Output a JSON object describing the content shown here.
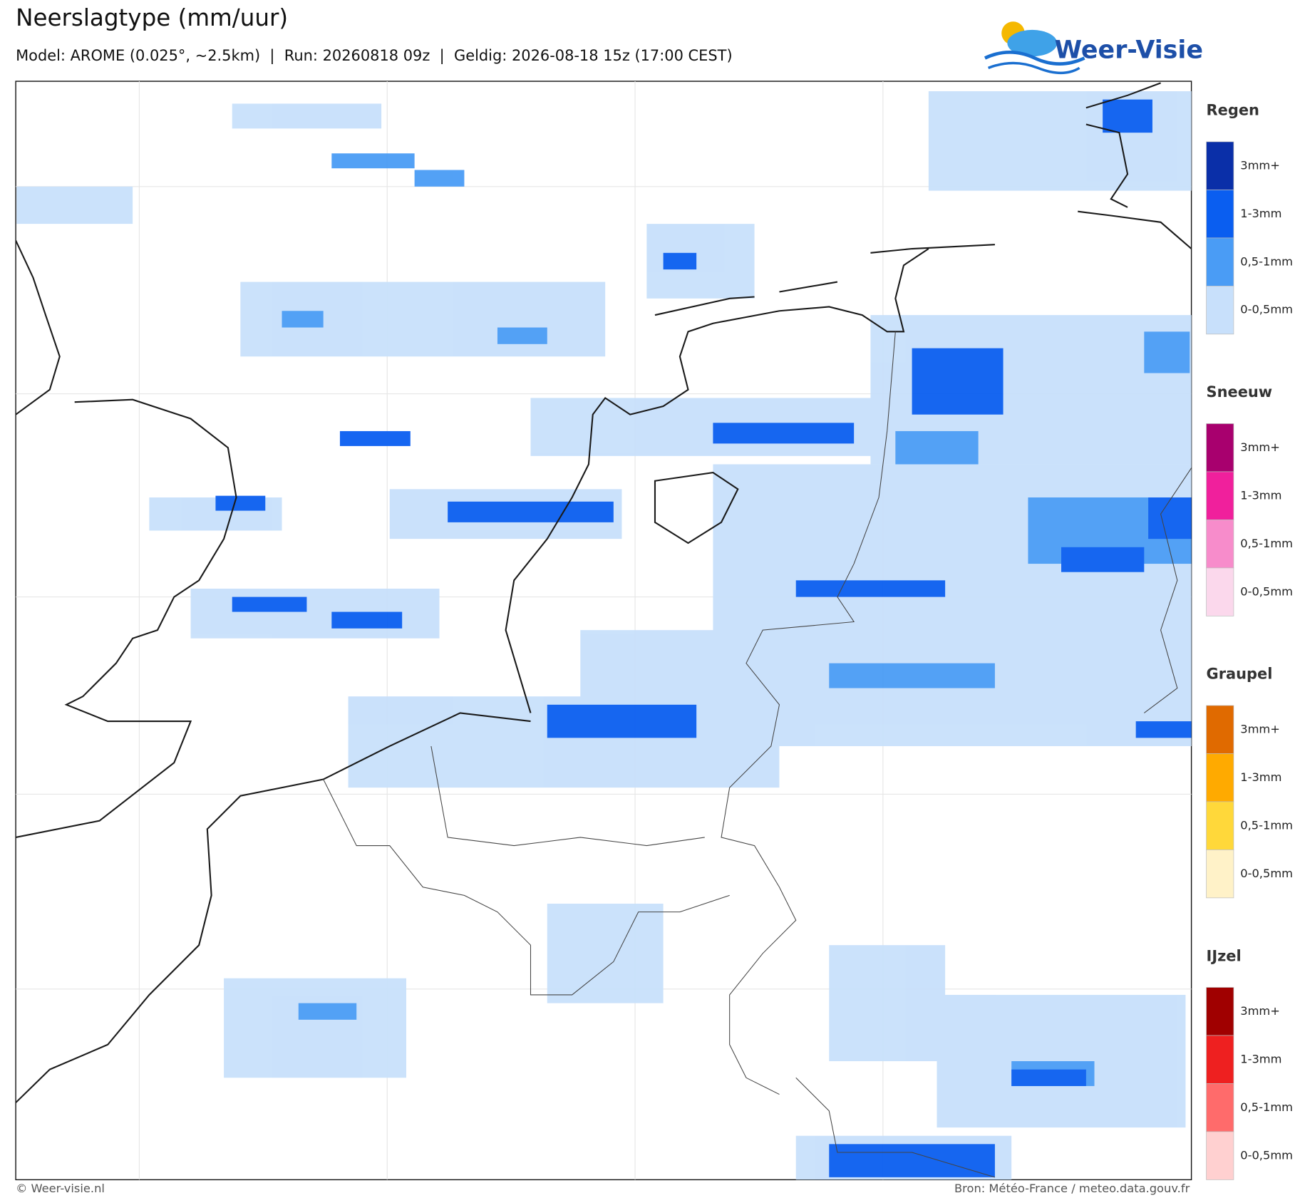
{
  "header": {
    "title": "Neerslagtype (mm/uur)",
    "subtitle": "Model: AROME (0.025°, ~2.5km)  |  Run: 20260818 09z  |  Geldig: 2026-08-18 15z (17:00 CEST)",
    "logo": "Weer-Visie"
  },
  "legend": [
    {
      "title": "Regen",
      "items": [
        {
          "label": "3mm+",
          "color": "#0a2fa8"
        },
        {
          "label": "1-3mm",
          "color": "#0a5ef0"
        },
        {
          "label": "0,5-1mm",
          "color": "#4a9cf5"
        },
        {
          "label": "0-0,5mm",
          "color": "#c8e0fb"
        }
      ]
    },
    {
      "title": "Sneeuw",
      "items": [
        {
          "label": "3mm+",
          "color": "#a8006e"
        },
        {
          "label": "1-3mm",
          "color": "#f0209c"
        },
        {
          "label": "0,5-1mm",
          "color": "#f78ccb"
        },
        {
          "label": "0-0,5mm",
          "color": "#fbd8ec"
        }
      ]
    },
    {
      "title": "Graupel",
      "items": [
        {
          "label": "3mm+",
          "color": "#e06a00"
        },
        {
          "label": "1-3mm",
          "color": "#ffaa00"
        },
        {
          "label": "0,5-1mm",
          "color": "#ffd83a"
        },
        {
          "label": "0-0,5mm",
          "color": "#fff2c8"
        }
      ]
    },
    {
      "title": "IJzel",
      "items": [
        {
          "label": "3mm+",
          "color": "#a00000"
        },
        {
          "label": "1-3mm",
          "color": "#ee2020"
        },
        {
          "label": "0,5-1mm",
          "color": "#ff6b6b"
        },
        {
          "label": "0-0,5mm",
          "color": "#ffd0d0"
        }
      ]
    }
  ],
  "footer": {
    "left": "© Weer-visie.nl",
    "right": "Bron: Météo-France / meteo.data.gouv.fr"
  }
}
